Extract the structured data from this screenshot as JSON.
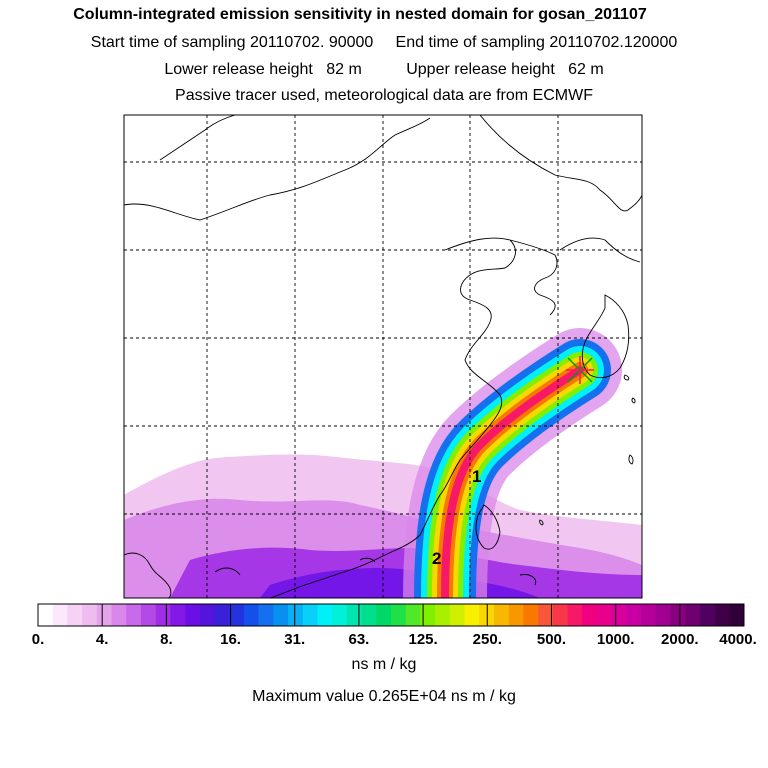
{
  "header": {
    "title": "Column-integrated emission sensitivity in nested domain for gosan_201107",
    "line1": "Start time of sampling 20110702. 90000     End time of sampling 20110702.120000",
    "line2": "Lower release height   82 m          Upper release height   62 m",
    "line3": "Passive tracer used, meteorological data are from ECMWF"
  },
  "map": {
    "labels": [
      "1",
      "2"
    ],
    "release_marker": "star-marker"
  },
  "colorbar": {
    "tick_labels": [
      "0.",
      "4.",
      "8.",
      "16.",
      "31.",
      "63.",
      "125.",
      "250.",
      "500.",
      "1000.",
      "2000.",
      "4000."
    ],
    "colors": [
      "#ffffff",
      "#fbe8fb",
      "#f6d2f6",
      "#efbcef",
      "#e4a4ea",
      "#d987ea",
      "#c86aea",
      "#b44ae6",
      "#9f2ee6",
      "#8418e6",
      "#6a10e6",
      "#5414dc",
      "#3a20d8",
      "#2432e0",
      "#1450ea",
      "#1470ee",
      "#0890f0",
      "#08b0f4",
      "#08d0f8",
      "#00f0f8",
      "#00f0d8",
      "#00e6b0",
      "#00e08c",
      "#00d868",
      "#20e048",
      "#50e828",
      "#80f000",
      "#a8f000",
      "#d0f000",
      "#f8f000",
      "#f8d800",
      "#f8b800",
      "#f89800",
      "#f87800",
      "#f85838",
      "#f83848",
      "#f81868",
      "#f00080",
      "#e8008c",
      "#d8009c",
      "#c800a4",
      "#b40098",
      "#a00090",
      "#880080",
      "#6e0070",
      "#500060",
      "#400048",
      "#300038"
    ],
    "units": "ns m / kg"
  },
  "footer": {
    "max_value": "Maximum value  0.265E+04 ns m / kg"
  }
}
